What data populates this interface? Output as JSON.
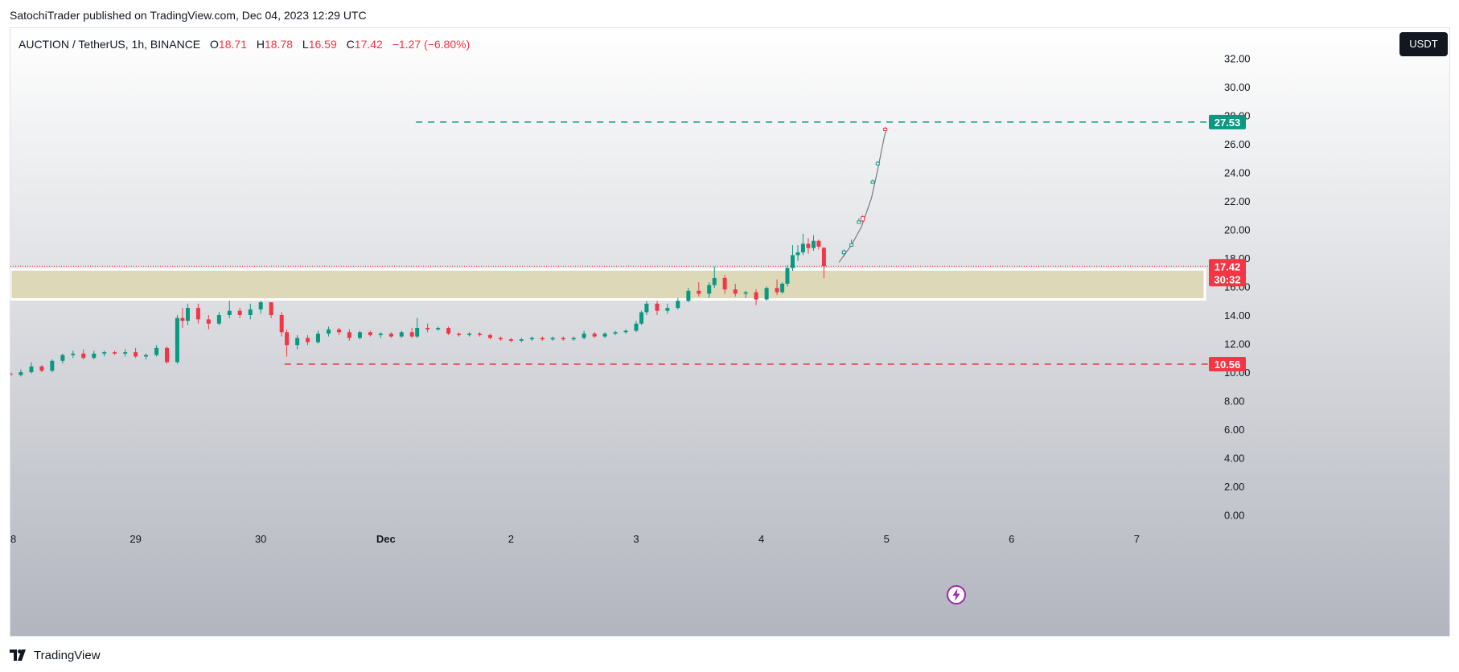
{
  "header": {
    "publisher_line": "SatochiTrader published on TradingView.com, Dec 04, 2023 12:29 UTC"
  },
  "legend": {
    "symbol": "AUCTION / TetherUS, 1h, BINANCE",
    "open_label": "O",
    "open": "18.71",
    "high_label": "H",
    "high": "18.78",
    "low_label": "L",
    "low": "16.59",
    "close_label": "C",
    "close": "17.42",
    "change": "−1.27 (−6.80%)"
  },
  "currency_button": "USDT",
  "footer": {
    "logo_text": "TradingView"
  },
  "colors": {
    "up": "#089981",
    "down": "#f23645",
    "zone": "#ddd8b8",
    "bg_top": "#ffffff",
    "bg_bottom": "#b2b5be",
    "axis_text": "#131722"
  },
  "chart_data": {
    "type": "candlestick",
    "title": "AUCTION / TetherUS, 1h, BINANCE",
    "y_axis": {
      "ticks": [
        "0.00",
        "2.00",
        "4.00",
        "6.00",
        "8.00",
        "10.00",
        "12.00",
        "14.00",
        "16.00",
        "18.00",
        "20.00",
        "22.00",
        "24.00",
        "26.00",
        "28.00",
        "30.00",
        "32.00"
      ],
      "range": [
        -0.9,
        35.2
      ]
    },
    "x_axis": {
      "ticks": [
        {
          "label": "28",
          "day": 0
        },
        {
          "label": "29",
          "day": 1
        },
        {
          "label": "30",
          "day": 2
        },
        {
          "label": "Dec",
          "day": 3
        },
        {
          "label": "2",
          "day": 4
        },
        {
          "label": "3",
          "day": 5
        },
        {
          "label": "4",
          "day": 6
        },
        {
          "label": "5",
          "day": 7
        },
        {
          "label": "6",
          "day": 8
        },
        {
          "label": "7",
          "day": 9
        }
      ]
    },
    "support_resistance_zone": {
      "low": 15.1,
      "high": 17.2
    },
    "target_line": {
      "value": 27.53,
      "label": "27.53",
      "start_day": 3.24
    },
    "stop_line": {
      "value": 10.56,
      "label": "10.56",
      "start_day": 2.19
    },
    "last_price": {
      "value": 17.42,
      "label": "17.42",
      "countdown": "30:32"
    },
    "candles": [
      {
        "d": 0.0,
        "o": 9.9,
        "h": 10.0,
        "l": 9.8,
        "c": 9.8
      },
      {
        "d": 0.083,
        "o": 9.8,
        "h": 10.2,
        "l": 9.7,
        "c": 10.0
      },
      {
        "d": 0.167,
        "o": 10.0,
        "h": 10.7,
        "l": 9.9,
        "c": 10.4
      },
      {
        "d": 0.25,
        "o": 10.4,
        "h": 10.5,
        "l": 10.0,
        "c": 10.1
      },
      {
        "d": 0.333,
        "o": 10.1,
        "h": 10.9,
        "l": 10.0,
        "c": 10.8
      },
      {
        "d": 0.417,
        "o": 10.8,
        "h": 11.3,
        "l": 10.6,
        "c": 11.2
      },
      {
        "d": 0.5,
        "o": 11.2,
        "h": 11.5,
        "l": 11.0,
        "c": 11.3
      },
      {
        "d": 0.583,
        "o": 11.3,
        "h": 11.6,
        "l": 10.9,
        "c": 11.0
      },
      {
        "d": 0.667,
        "o": 11.0,
        "h": 11.5,
        "l": 10.9,
        "c": 11.3
      },
      {
        "d": 0.75,
        "o": 11.3,
        "h": 11.5,
        "l": 11.1,
        "c": 11.4
      },
      {
        "d": 0.833,
        "o": 11.4,
        "h": 11.5,
        "l": 11.2,
        "c": 11.3
      },
      {
        "d": 0.917,
        "o": 11.3,
        "h": 11.6,
        "l": 11.1,
        "c": 11.4
      },
      {
        "d": 1.0,
        "o": 11.4,
        "h": 11.7,
        "l": 11.0,
        "c": 11.1
      },
      {
        "d": 1.083,
        "o": 11.1,
        "h": 11.3,
        "l": 10.9,
        "c": 11.2
      },
      {
        "d": 1.167,
        "o": 11.2,
        "h": 11.9,
        "l": 11.1,
        "c": 11.7
      },
      {
        "d": 1.25,
        "o": 11.7,
        "h": 11.8,
        "l": 10.6,
        "c": 10.7
      },
      {
        "d": 1.333,
        "o": 10.7,
        "h": 14.0,
        "l": 10.6,
        "c": 13.8
      },
      {
        "d": 1.375,
        "o": 13.8,
        "h": 14.5,
        "l": 13.1,
        "c": 13.6
      },
      {
        "d": 1.417,
        "o": 13.6,
        "h": 14.8,
        "l": 13.3,
        "c": 14.5
      },
      {
        "d": 1.5,
        "o": 14.5,
        "h": 14.8,
        "l": 13.4,
        "c": 13.7
      },
      {
        "d": 1.583,
        "o": 13.7,
        "h": 14.0,
        "l": 13.0,
        "c": 13.4
      },
      {
        "d": 1.667,
        "o": 13.4,
        "h": 14.2,
        "l": 13.3,
        "c": 14.0
      },
      {
        "d": 1.75,
        "o": 14.0,
        "h": 15.0,
        "l": 13.8,
        "c": 14.3
      },
      {
        "d": 1.833,
        "o": 14.3,
        "h": 14.5,
        "l": 13.8,
        "c": 14.0
      },
      {
        "d": 1.917,
        "o": 14.0,
        "h": 14.8,
        "l": 13.7,
        "c": 14.4
      },
      {
        "d": 2.0,
        "o": 14.4,
        "h": 15.0,
        "l": 14.1,
        "c": 14.9
      },
      {
        "d": 2.083,
        "o": 14.9,
        "h": 14.9,
        "l": 13.8,
        "c": 14.0
      },
      {
        "d": 2.167,
        "o": 14.0,
        "h": 14.2,
        "l": 12.5,
        "c": 12.8
      },
      {
        "d": 2.208,
        "o": 12.8,
        "h": 13.0,
        "l": 11.1,
        "c": 11.9
      },
      {
        "d": 2.292,
        "o": 11.9,
        "h": 12.6,
        "l": 11.6,
        "c": 12.4
      },
      {
        "d": 2.375,
        "o": 12.4,
        "h": 12.6,
        "l": 11.9,
        "c": 12.1
      },
      {
        "d": 2.458,
        "o": 12.1,
        "h": 12.9,
        "l": 12.0,
        "c": 12.7
      },
      {
        "d": 2.542,
        "o": 12.7,
        "h": 13.2,
        "l": 12.5,
        "c": 13.0
      },
      {
        "d": 2.625,
        "o": 13.0,
        "h": 13.1,
        "l": 12.6,
        "c": 12.8
      },
      {
        "d": 2.708,
        "o": 12.8,
        "h": 13.0,
        "l": 12.2,
        "c": 12.4
      },
      {
        "d": 2.792,
        "o": 12.4,
        "h": 12.9,
        "l": 12.3,
        "c": 12.8
      },
      {
        "d": 2.875,
        "o": 12.8,
        "h": 12.9,
        "l": 12.5,
        "c": 12.6
      },
      {
        "d": 2.958,
        "o": 12.6,
        "h": 12.8,
        "l": 12.4,
        "c": 12.7
      },
      {
        "d": 3.042,
        "o": 12.7,
        "h": 12.8,
        "l": 12.4,
        "c": 12.5
      },
      {
        "d": 3.125,
        "o": 12.5,
        "h": 12.9,
        "l": 12.4,
        "c": 12.8
      },
      {
        "d": 3.208,
        "o": 12.8,
        "h": 13.1,
        "l": 12.4,
        "c": 12.5
      },
      {
        "d": 3.25,
        "o": 12.5,
        "h": 13.8,
        "l": 12.4,
        "c": 13.1
      },
      {
        "d": 3.333,
        "o": 13.1,
        "h": 13.4,
        "l": 12.8,
        "c": 13.0
      },
      {
        "d": 3.417,
        "o": 13.0,
        "h": 13.2,
        "l": 12.9,
        "c": 13.1
      },
      {
        "d": 3.5,
        "o": 13.1,
        "h": 13.2,
        "l": 12.6,
        "c": 12.7
      },
      {
        "d": 3.583,
        "o": 12.7,
        "h": 12.8,
        "l": 12.5,
        "c": 12.6
      },
      {
        "d": 3.667,
        "o": 12.6,
        "h": 12.8,
        "l": 12.5,
        "c": 12.7
      },
      {
        "d": 3.75,
        "o": 12.7,
        "h": 12.8,
        "l": 12.5,
        "c": 12.6
      },
      {
        "d": 3.833,
        "o": 12.6,
        "h": 12.7,
        "l": 12.3,
        "c": 12.4
      },
      {
        "d": 3.917,
        "o": 12.4,
        "h": 12.5,
        "l": 12.2,
        "c": 12.3
      },
      {
        "d": 4.0,
        "o": 12.3,
        "h": 12.4,
        "l": 12.1,
        "c": 12.2
      },
      {
        "d": 4.083,
        "o": 12.2,
        "h": 12.4,
        "l": 12.1,
        "c": 12.3
      },
      {
        "d": 4.167,
        "o": 12.3,
        "h": 12.5,
        "l": 12.2,
        "c": 12.4
      },
      {
        "d": 4.25,
        "o": 12.4,
        "h": 12.5,
        "l": 12.2,
        "c": 12.3
      },
      {
        "d": 4.333,
        "o": 12.3,
        "h": 12.5,
        "l": 12.2,
        "c": 12.4
      },
      {
        "d": 4.417,
        "o": 12.4,
        "h": 12.5,
        "l": 12.2,
        "c": 12.3
      },
      {
        "d": 4.5,
        "o": 12.3,
        "h": 12.5,
        "l": 12.2,
        "c": 12.4
      },
      {
        "d": 4.583,
        "o": 12.4,
        "h": 12.9,
        "l": 12.3,
        "c": 12.7
      },
      {
        "d": 4.667,
        "o": 12.7,
        "h": 12.8,
        "l": 12.4,
        "c": 12.5
      },
      {
        "d": 4.75,
        "o": 12.5,
        "h": 12.8,
        "l": 12.4,
        "c": 12.7
      },
      {
        "d": 4.833,
        "o": 12.7,
        "h": 12.9,
        "l": 12.6,
        "c": 12.8
      },
      {
        "d": 4.917,
        "o": 12.8,
        "h": 13.0,
        "l": 12.7,
        "c": 12.9
      },
      {
        "d": 5.0,
        "o": 12.9,
        "h": 13.6,
        "l": 12.8,
        "c": 13.4
      },
      {
        "d": 5.042,
        "o": 13.4,
        "h": 14.3,
        "l": 13.3,
        "c": 14.2
      },
      {
        "d": 5.083,
        "o": 14.2,
        "h": 15.0,
        "l": 14.0,
        "c": 14.8
      },
      {
        "d": 5.167,
        "o": 14.8,
        "h": 15.0,
        "l": 14.0,
        "c": 14.3
      },
      {
        "d": 5.25,
        "o": 14.3,
        "h": 14.8,
        "l": 14.1,
        "c": 14.5
      },
      {
        "d": 5.333,
        "o": 14.5,
        "h": 15.2,
        "l": 14.4,
        "c": 15.0
      },
      {
        "d": 5.417,
        "o": 15.0,
        "h": 15.9,
        "l": 14.9,
        "c": 15.7
      },
      {
        "d": 5.5,
        "o": 15.7,
        "h": 16.3,
        "l": 15.3,
        "c": 15.5
      },
      {
        "d": 5.583,
        "o": 15.5,
        "h": 16.3,
        "l": 15.2,
        "c": 16.1
      },
      {
        "d": 5.625,
        "o": 16.1,
        "h": 17.4,
        "l": 15.9,
        "c": 16.6
      },
      {
        "d": 5.708,
        "o": 16.6,
        "h": 16.8,
        "l": 15.5,
        "c": 15.8
      },
      {
        "d": 5.792,
        "o": 15.8,
        "h": 16.2,
        "l": 15.3,
        "c": 15.5
      },
      {
        "d": 5.875,
        "o": 15.5,
        "h": 15.7,
        "l": 15.2,
        "c": 15.6
      },
      {
        "d": 5.958,
        "o": 15.6,
        "h": 15.8,
        "l": 14.7,
        "c": 15.1
      },
      {
        "d": 6.042,
        "o": 15.1,
        "h": 16.0,
        "l": 15.0,
        "c": 15.9
      },
      {
        "d": 6.125,
        "o": 15.9,
        "h": 16.5,
        "l": 15.4,
        "c": 15.6
      },
      {
        "d": 6.167,
        "o": 15.6,
        "h": 16.3,
        "l": 15.5,
        "c": 16.2
      },
      {
        "d": 6.208,
        "o": 16.2,
        "h": 17.5,
        "l": 16.0,
        "c": 17.3
      },
      {
        "d": 6.25,
        "o": 17.3,
        "h": 18.9,
        "l": 17.1,
        "c": 18.2
      },
      {
        "d": 6.292,
        "o": 18.2,
        "h": 18.9,
        "l": 17.8,
        "c": 18.4
      },
      {
        "d": 6.333,
        "o": 18.4,
        "h": 19.7,
        "l": 18.2,
        "c": 19.0
      },
      {
        "d": 6.375,
        "o": 19.0,
        "h": 19.4,
        "l": 18.3,
        "c": 18.7
      },
      {
        "d": 6.417,
        "o": 18.7,
        "h": 19.6,
        "l": 18.5,
        "c": 19.2
      },
      {
        "d": 6.458,
        "o": 19.2,
        "h": 19.3,
        "l": 18.6,
        "c": 18.8
      },
      {
        "d": 6.5,
        "o": 18.71,
        "h": 18.78,
        "l": 16.59,
        "c": 17.42
      }
    ],
    "projection": {
      "path": [
        [
          6.62,
          17.7
        ],
        [
          6.72,
          18.9
        ],
        [
          6.8,
          20.2
        ],
        [
          6.88,
          22.2
        ],
        [
          6.93,
          24.2
        ],
        [
          6.98,
          26.4
        ],
        [
          7.0,
          27.1
        ]
      ],
      "ghost_candles": [
        {
          "d": 6.66,
          "o": 18.3,
          "h": 18.6,
          "l": 18.1,
          "c": 18.5
        },
        {
          "d": 6.72,
          "o": 18.9,
          "h": 19.3,
          "l": 18.8,
          "c": 19.0
        },
        {
          "d": 6.78,
          "o": 20.6,
          "h": 20.8,
          "l": 20.5,
          "c": 20.6
        },
        {
          "d": 6.81,
          "o": 20.9,
          "h": 21.0,
          "l": 20.5,
          "c": 20.6
        },
        {
          "d": 6.89,
          "o": 23.4,
          "h": 23.5,
          "l": 23.3,
          "c": 23.4
        },
        {
          "d": 6.93,
          "o": 24.6,
          "h": 24.8,
          "l": 24.5,
          "c": 24.7
        },
        {
          "d": 6.99,
          "o": 27.1,
          "h": 27.2,
          "l": 26.9,
          "c": 27.0
        }
      ]
    }
  }
}
